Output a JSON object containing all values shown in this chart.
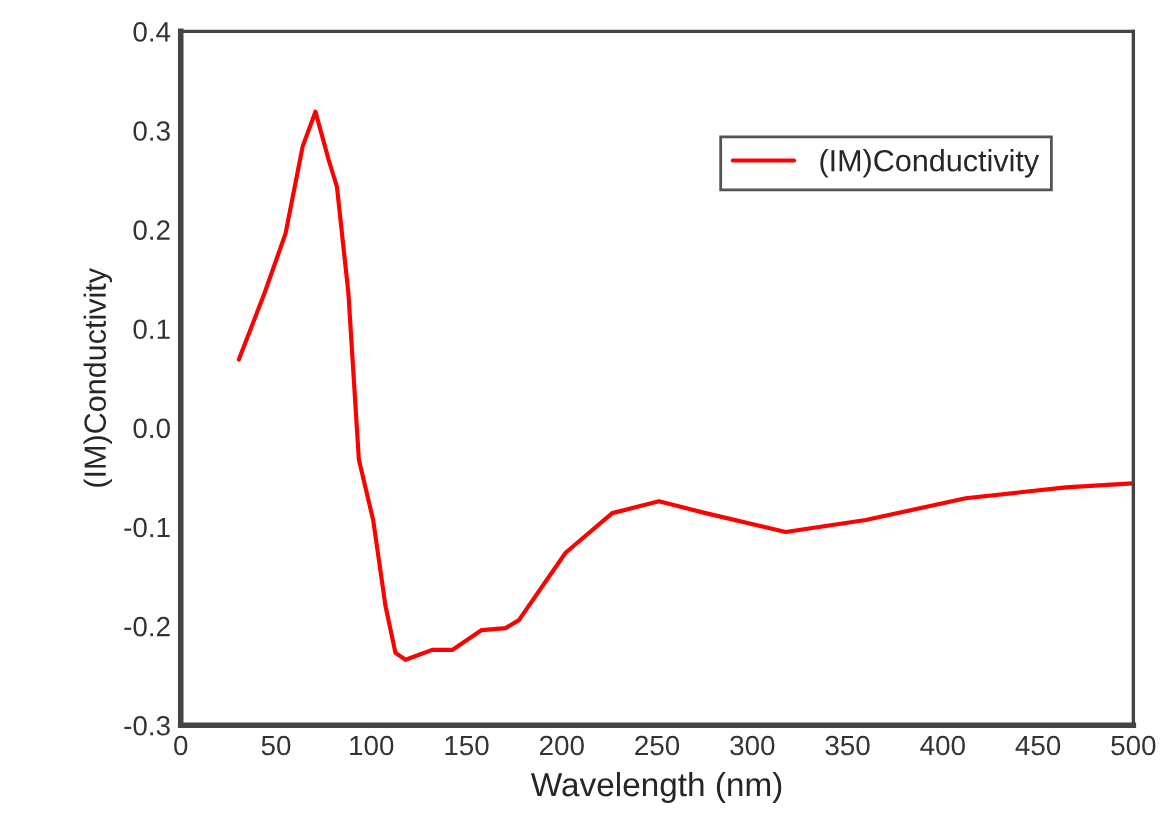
{
  "chart_data": {
    "type": "line",
    "xlabel": "Wavelength (nm)",
    "ylabel": "(IM)Conductivity",
    "x": [
      30.5,
      44,
      55,
      64,
      70.7,
      77.7,
      82,
      88,
      93.5,
      101,
      107.5,
      112.7,
      118,
      132,
      142.5,
      158,
      170.5,
      177.5,
      202,
      226.5,
      251,
      275.5,
      317.5,
      359.5,
      412,
      464.5,
      499.5
    ],
    "series": [
      {
        "name": "(IM)Conductivity",
        "color": "#ff0000",
        "values": [
          0.069,
          0.136,
          0.196,
          0.284,
          0.319,
          0.27,
          0.243,
          0.136,
          -0.032,
          -0.093,
          -0.18,
          -0.227,
          -0.234,
          -0.224,
          -0.224,
          -0.204,
          -0.202,
          -0.194,
          -0.126,
          -0.086,
          -0.074,
          -0.086,
          -0.105,
          -0.093,
          -0.071,
          -0.06,
          -0.056
        ]
      }
    ],
    "xlim": [
      0,
      500
    ],
    "xticks": [
      0,
      50,
      100,
      150,
      200,
      250,
      300,
      350,
      400,
      450,
      500
    ],
    "ylim": [
      -0.3,
      0.4
    ],
    "yticks": [
      -0.3,
      -0.2,
      -0.1,
      {
        "value": 0,
        "label": "0.0"
      },
      0.1,
      0.2,
      0.3,
      0.4
    ],
    "grid": false,
    "legend": "top right",
    "marker": "none",
    "line_style": "solid"
  }
}
